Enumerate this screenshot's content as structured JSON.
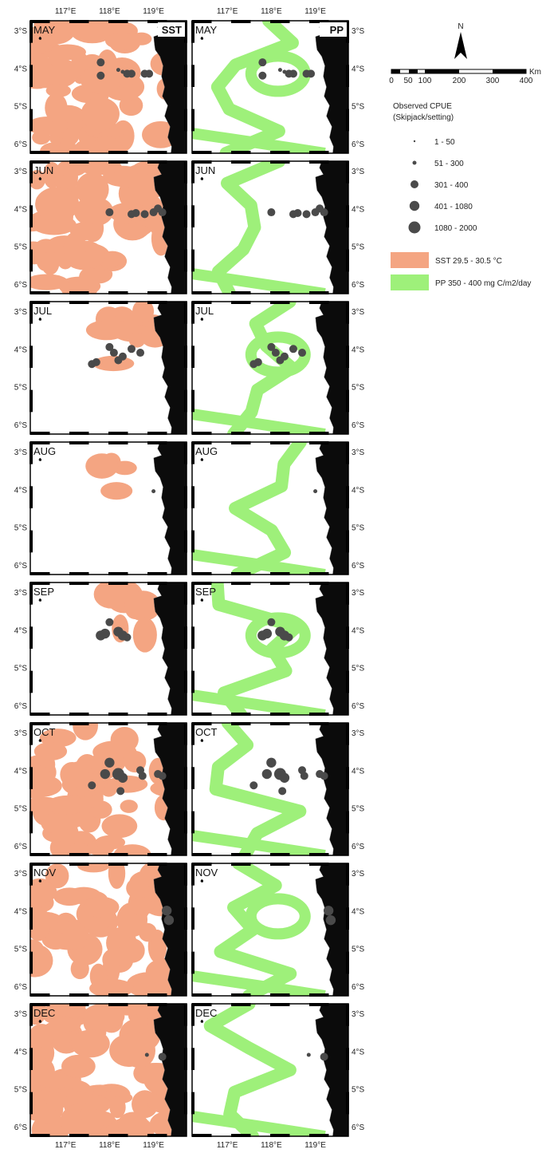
{
  "top_axis": {
    "lon_labels": [
      "117°E",
      "118°E",
      "119°E"
    ]
  },
  "bottom_axis": {
    "lon_labels": [
      "117°E",
      "118°E",
      "119°E"
    ]
  },
  "lat_labels": [
    "3°S",
    "4°S",
    "5°S",
    "6°S"
  ],
  "panel_columns": [
    {
      "id": "sst",
      "corner_label": "SST",
      "fill_color": "#f4a582"
    },
    {
      "id": "pp",
      "corner_label": "PP",
      "fill_color": "#9ef07a"
    }
  ],
  "months": [
    "MAY",
    "JUN",
    "JUL",
    "AUG",
    "SEP",
    "OCT",
    "NOV",
    "DEC"
  ],
  "colors": {
    "land": "#0b0b0b",
    "points": "#4a4a4a",
    "frame": "#000000"
  },
  "north_arrow": {
    "label": "N",
    "icon": "north-arrow-icon"
  },
  "scale_bar": {
    "unit": "Km",
    "ticks": [
      "0",
      "50",
      "100",
      "200",
      "300",
      "400"
    ]
  },
  "legend": {
    "cpue_title_line1": "Observed CPUE",
    "cpue_title_line2": "(Skipjack/setting)",
    "cpue_classes": [
      {
        "label": "1 - 50",
        "size_rank": 1
      },
      {
        "label": "51 - 300",
        "size_rank": 2
      },
      {
        "label": "301 - 400",
        "size_rank": 3
      },
      {
        "label": "401 - 1080",
        "size_rank": 4
      },
      {
        "label": "1080 - 2000",
        "size_rank": 5
      }
    ],
    "sst_label": "SST 29.5 - 30.5 °C",
    "pp_label": "PP 350 - 400 mg C/m2/day"
  }
}
